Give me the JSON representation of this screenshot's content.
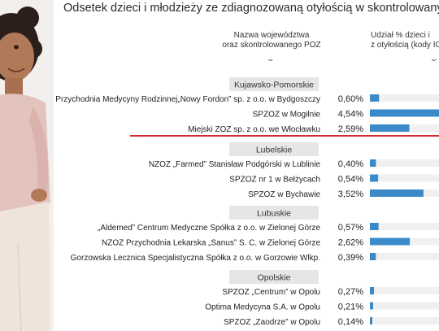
{
  "title": "Odsetek dzieci i młodzieży ze zdiagnozowaną otyłością w skontrolowanych",
  "columns": {
    "name_line1": "Nazwa województwa",
    "name_line2": "oraz skontrolowanego POZ",
    "pct_line1": "Udział % dzieci i",
    "pct_line2": "z otyłością (kody IC"
  },
  "colors": {
    "bar": "#3a8ac9",
    "bar_bg": "#f0f0f0",
    "header_bg": "#e6e6e6",
    "highlight": "#d42a32"
  },
  "chart_data": {
    "type": "bar",
    "orientation": "horizontal",
    "title": "Odsetek dzieci i młodzieży ze zdiagnozowaną otyłością w skontrolowanych",
    "xlabel": "Udział % dzieci i z otyłością (kody IC",
    "ylabel": "Nazwa województwa oraz skontrolowanego POZ",
    "groups": [
      {
        "name": "Kujawsko-Pomorskie",
        "items": [
          {
            "label": "Przychodnia Medycyny Rodzinnej„Nowy Fordon” sp. z o.o. w Bydgoszczy",
            "value_label": "0,60%",
            "value": 0.6
          },
          {
            "label": "SPZOZ w Mogilnie",
            "value_label": "4,54%",
            "value": 4.54
          },
          {
            "label": "Miejski ZOZ sp. z o.o. we Włocławku",
            "value_label": "2,59%",
            "value": 2.59,
            "highlighted": true
          }
        ]
      },
      {
        "name": "Lubelskie",
        "items": [
          {
            "label": "NZOZ „Farmed” Stanisław Podgórski w Lublinie",
            "value_label": "0,40%",
            "value": 0.4
          },
          {
            "label": "SPZOZ nr 1 w Bełżycach",
            "value_label": "0,54%",
            "value": 0.54
          },
          {
            "label": "SPZOZ w Bychawie",
            "value_label": "3,52%",
            "value": 3.52
          }
        ]
      },
      {
        "name": "Lubuskie",
        "items": [
          {
            "label": "„Aldemed” Centrum Medyczne Spółka z o.o. w Zielonej Górze",
            "value_label": "0,57%",
            "value": 0.57
          },
          {
            "label": "NZOZ Przychodnia Lekarska „Sanus” S. C. w Zielonej Górze",
            "value_label": "2,62%",
            "value": 2.62
          },
          {
            "label": "Gorzowska Lecznica Specjalistyczna Spółka z o.o. w Gorzowie Wlkp.",
            "value_label": "0,39%",
            "value": 0.39
          }
        ]
      },
      {
        "name": "Opolskie",
        "items": [
          {
            "label": "SPZOZ „Centrum” w Opolu",
            "value_label": "0,27%",
            "value": 0.27
          },
          {
            "label": "Optima Medycyna S.A. w Opolu",
            "value_label": "0,21%",
            "value": 0.21
          },
          {
            "label": "SPZOZ „Zaodrze” w Opolu",
            "value_label": "0,14%",
            "value": 0.14
          }
        ]
      }
    ]
  }
}
